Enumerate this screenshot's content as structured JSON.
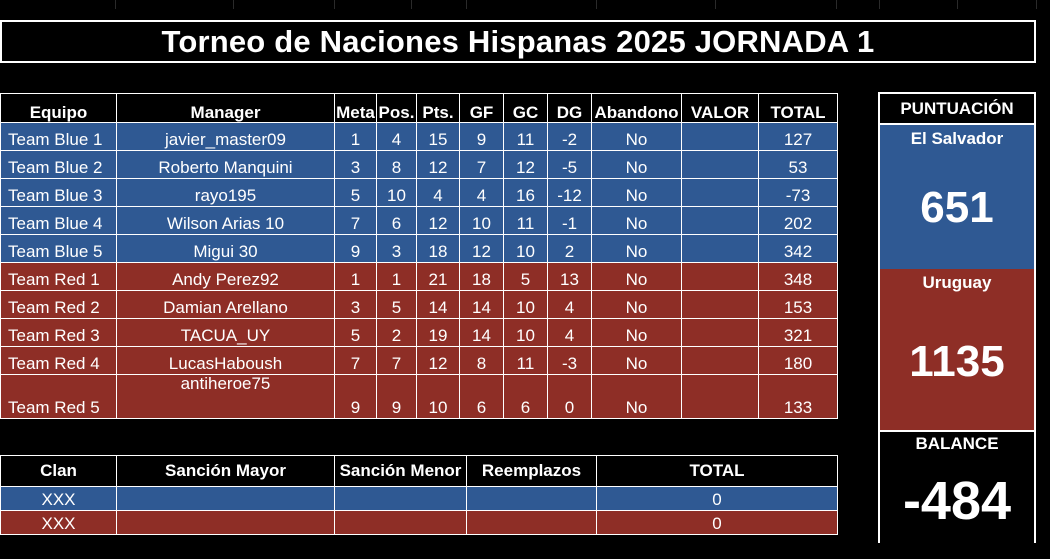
{
  "title": "Torneo de Naciones Hispanas 2025 JORNADA 1",
  "colors": {
    "blue": "#2f5993",
    "red": "#8e2e26",
    "background": "#000000",
    "border": "#ffffff"
  },
  "main_table": {
    "headers": [
      "Equipo",
      "Manager",
      "Meta",
      "Pos.",
      "Pts.",
      "GF",
      "GC",
      "DG",
      "Abandono",
      "VALOR",
      "TOTAL"
    ],
    "rows": [
      {
        "team": "Team Blue 1",
        "manager": "javier_master09",
        "meta": "1",
        "pos": "4",
        "pts": "15",
        "gf": "9",
        "gc": "11",
        "dg": "-2",
        "abandono": "No",
        "valor": "",
        "total": "127"
      },
      {
        "team": "Team Blue 2",
        "manager": "Roberto Manquini",
        "meta": "3",
        "pos": "8",
        "pts": "12",
        "gf": "7",
        "gc": "12",
        "dg": "-5",
        "abandono": "No",
        "valor": "",
        "total": "53"
      },
      {
        "team": "Team Blue 3",
        "manager": "rayo195",
        "meta": "5",
        "pos": "10",
        "pts": "4",
        "gf": "4",
        "gc": "16",
        "dg": "-12",
        "abandono": "No",
        "valor": "",
        "total": "-73"
      },
      {
        "team": "Team Blue 4",
        "manager": "Wilson Arias 10",
        "meta": "7",
        "pos": "6",
        "pts": "12",
        "gf": "10",
        "gc": "11",
        "dg": "-1",
        "abandono": "No",
        "valor": "",
        "total": "202"
      },
      {
        "team": "Team Blue 5",
        "manager": "Migui 30",
        "meta": "9",
        "pos": "3",
        "pts": "18",
        "gf": "12",
        "gc": "10",
        "dg": "2",
        "abandono": "No",
        "valor": "",
        "total": "342"
      },
      {
        "team": "Team Red 1",
        "manager": "Andy Perez92",
        "meta": "1",
        "pos": "1",
        "pts": "21",
        "gf": "18",
        "gc": "5",
        "dg": "13",
        "abandono": "No",
        "valor": "",
        "total": "348"
      },
      {
        "team": "Team Red 2",
        "manager": "Damian Arellano",
        "meta": "3",
        "pos": "5",
        "pts": "14",
        "gf": "14",
        "gc": "10",
        "dg": "4",
        "abandono": "No",
        "valor": "",
        "total": "153"
      },
      {
        "team": "Team Red 3",
        "manager": "TACUA_UY",
        "meta": "5",
        "pos": "2",
        "pts": "19",
        "gf": "14",
        "gc": "10",
        "dg": "4",
        "abandono": "No",
        "valor": "",
        "total": "321"
      },
      {
        "team": "Team Red 4",
        "manager": "LucasHaboush",
        "meta": "7",
        "pos": "7",
        "pts": "12",
        "gf": "8",
        "gc": "11",
        "dg": "-3",
        "abandono": "No",
        "valor": "",
        "total": "180"
      },
      {
        "team": "Team Red 5",
        "manager": "antiheroe75",
        "meta": "9",
        "pos": "9",
        "pts": "10",
        "gf": "6",
        "gc": "6",
        "dg": "0",
        "abandono": "No",
        "valor": "",
        "total": "133"
      }
    ]
  },
  "clan_table": {
    "headers": [
      "Clan",
      "Sanción Mayor",
      "Sanción Menor",
      "Reemplazos",
      "TOTAL"
    ],
    "rows": [
      {
        "clan": "XXX",
        "mayor": "",
        "menor": "",
        "reemplazos": "",
        "total": "0"
      },
      {
        "clan": "XXX",
        "mayor": "",
        "menor": "",
        "reemplazos": "",
        "total": "0"
      }
    ]
  },
  "puntuacion": {
    "header": "PUNTUACIÓN",
    "teams": [
      {
        "name": "El Salvador",
        "score": "651"
      },
      {
        "name": "Uruguay",
        "score": "1135"
      }
    ],
    "balance_label": "BALANCE",
    "balance_value": "-484"
  }
}
